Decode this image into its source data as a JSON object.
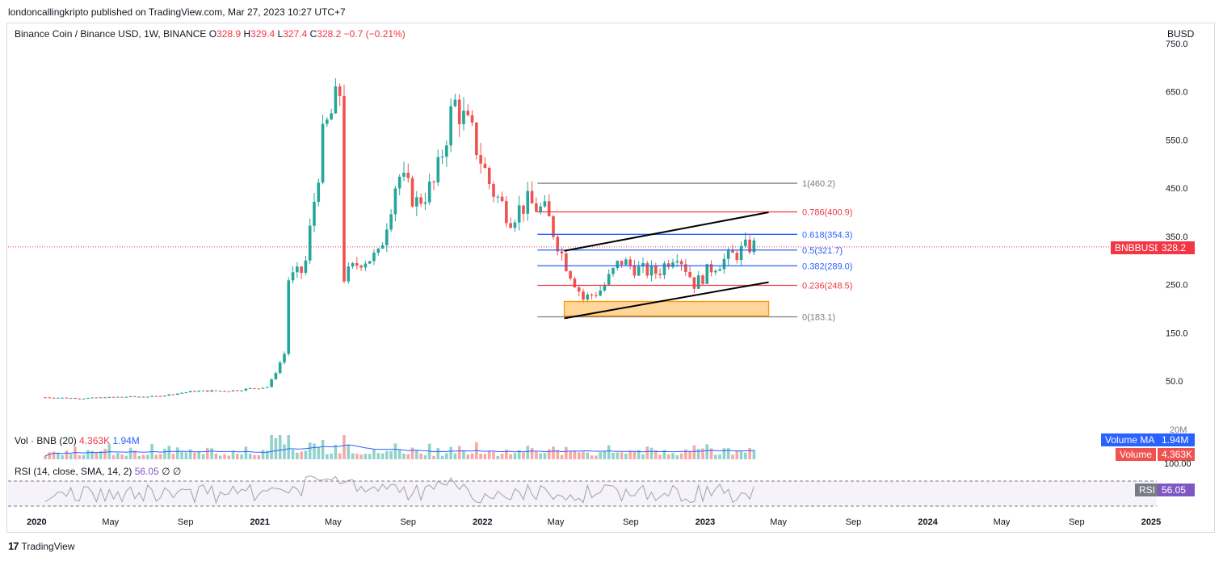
{
  "header": {
    "text": "londoncallingkripto published on TradingView.com, Mar 27, 2023 10:27 UTC+7"
  },
  "symbol": {
    "name": "Binance Coin / Binance USD, 1W, BINANCE",
    "open_label": "O",
    "open": "328.9",
    "high_label": "H",
    "high": "329.4",
    "low_label": "L",
    "low": "327.4",
    "close_label": "C",
    "close": "328.2",
    "change": "−0.7 (−0.21%)"
  },
  "currency": "BUSD",
  "colors": {
    "up": "#26a69a",
    "down": "#ef5350",
    "fib_red": "#f23645",
    "fib_blue": "#2962ff",
    "fib_gray": "#787b86",
    "zone": "#ffcc80",
    "zone_border": "#ff9800",
    "rsi": "#7e57c2",
    "vol_ma": "#2962ff"
  },
  "price_badge": {
    "symbol": "BNBBUSD",
    "value": "328.2"
  },
  "volume_pane": {
    "label": "Vol · BNB (20)",
    "value1": "4.363K",
    "value2": "1.94M",
    "ma_badge_label": "Volume MA",
    "ma_badge_value": "1.94M",
    "vol_badge_label": "Volume",
    "vol_badge_value": "4.363K",
    "axis_top": "20M"
  },
  "rsi_pane": {
    "label": "RSI (14, close, SMA, 14, 2)",
    "value": "56.05",
    "extra1": "∅",
    "extra2": "∅",
    "badge_label": "RSI",
    "badge_value": "56.05",
    "axis_top": "100.00"
  },
  "footer": {
    "logo": "17",
    "brand": "TradingView"
  },
  "chart_data": {
    "type": "candlestick",
    "timeframe": "1W",
    "y_ticks": [
      "750.0",
      "650.0",
      "550.0",
      "450.0",
      "350.0",
      "250.0",
      "150.0",
      "50.0"
    ],
    "ylim": [
      -20,
      760
    ],
    "x_ticks": [
      "2020",
      "May",
      "Sep",
      "2021",
      "May",
      "Sep",
      "2022",
      "May",
      "Sep",
      "2023",
      "May",
      "Sep",
      "2024",
      "May",
      "Sep",
      "2025"
    ],
    "last_price": 328.2,
    "price_path": [
      [
        "2020-01",
        16
      ],
      [
        "2020-03",
        14
      ],
      [
        "2020-05",
        17
      ],
      [
        "2020-07",
        18
      ],
      [
        "2020-09",
        29
      ],
      [
        "2020-11",
        30
      ],
      [
        "2021-01",
        38
      ],
      [
        "2021-02",
        120
      ],
      [
        "2021-02",
        260
      ],
      [
        "2021-03",
        280
      ],
      [
        "2021-04",
        560
      ],
      [
        "2021-05",
        660
      ],
      [
        "2021-05",
        260
      ],
      [
        "2021-06",
        300
      ],
      [
        "2021-07",
        310
      ],
      [
        "2021-08",
        480
      ],
      [
        "2021-09",
        420
      ],
      [
        "2021-10",
        460
      ],
      [
        "2021-11",
        630
      ],
      [
        "2021-12",
        560
      ],
      [
        "2022-01",
        450
      ],
      [
        "2022-02",
        390
      ],
      [
        "2022-03",
        420
      ],
      [
        "2022-04",
        400
      ],
      [
        "2022-05",
        300
      ],
      [
        "2022-06",
        220
      ],
      [
        "2022-07",
        240
      ],
      [
        "2022-08",
        300
      ],
      [
        "2022-09",
        280
      ],
      [
        "2022-10",
        275
      ],
      [
        "2022-11",
        320
      ],
      [
        "2022-12",
        250
      ],
      [
        "2023-01",
        290
      ],
      [
        "2023-02",
        310
      ],
      [
        "2023-03",
        330
      ]
    ],
    "fib_levels": [
      {
        "ratio": "1",
        "value": "460.2",
        "label": "1(460.2)",
        "color": "gray"
      },
      {
        "ratio": "0.786",
        "value": "400.9",
        "label": "0.786(400.9)",
        "color": "red"
      },
      {
        "ratio": "0.618",
        "value": "354.3",
        "label": "0.618(354.3)",
        "color": "blue"
      },
      {
        "ratio": "0.5",
        "value": "321.7",
        "label": "0.5(321.7)",
        "color": "blue"
      },
      {
        "ratio": "0.382",
        "value": "289.0",
        "label": "0.382(289.0)",
        "color": "blue"
      },
      {
        "ratio": "0.236",
        "value": "248.5",
        "label": "0.236(248.5)",
        "color": "red"
      },
      {
        "ratio": "0",
        "value": "183.1",
        "label": "0(183.1)",
        "color": "gray"
      }
    ],
    "trendlines": [
      {
        "from": [
          "2022-05",
          320
        ],
        "to": [
          "2023-04",
          400
        ]
      },
      {
        "from": [
          "2022-05",
          180
        ],
        "to": [
          "2023-04",
          255
        ]
      }
    ],
    "zone": {
      "from": "2022-05",
      "to": "2023-04",
      "low": 185,
      "high": 215
    },
    "rsi_level_lines": [
      70,
      30
    ]
  }
}
